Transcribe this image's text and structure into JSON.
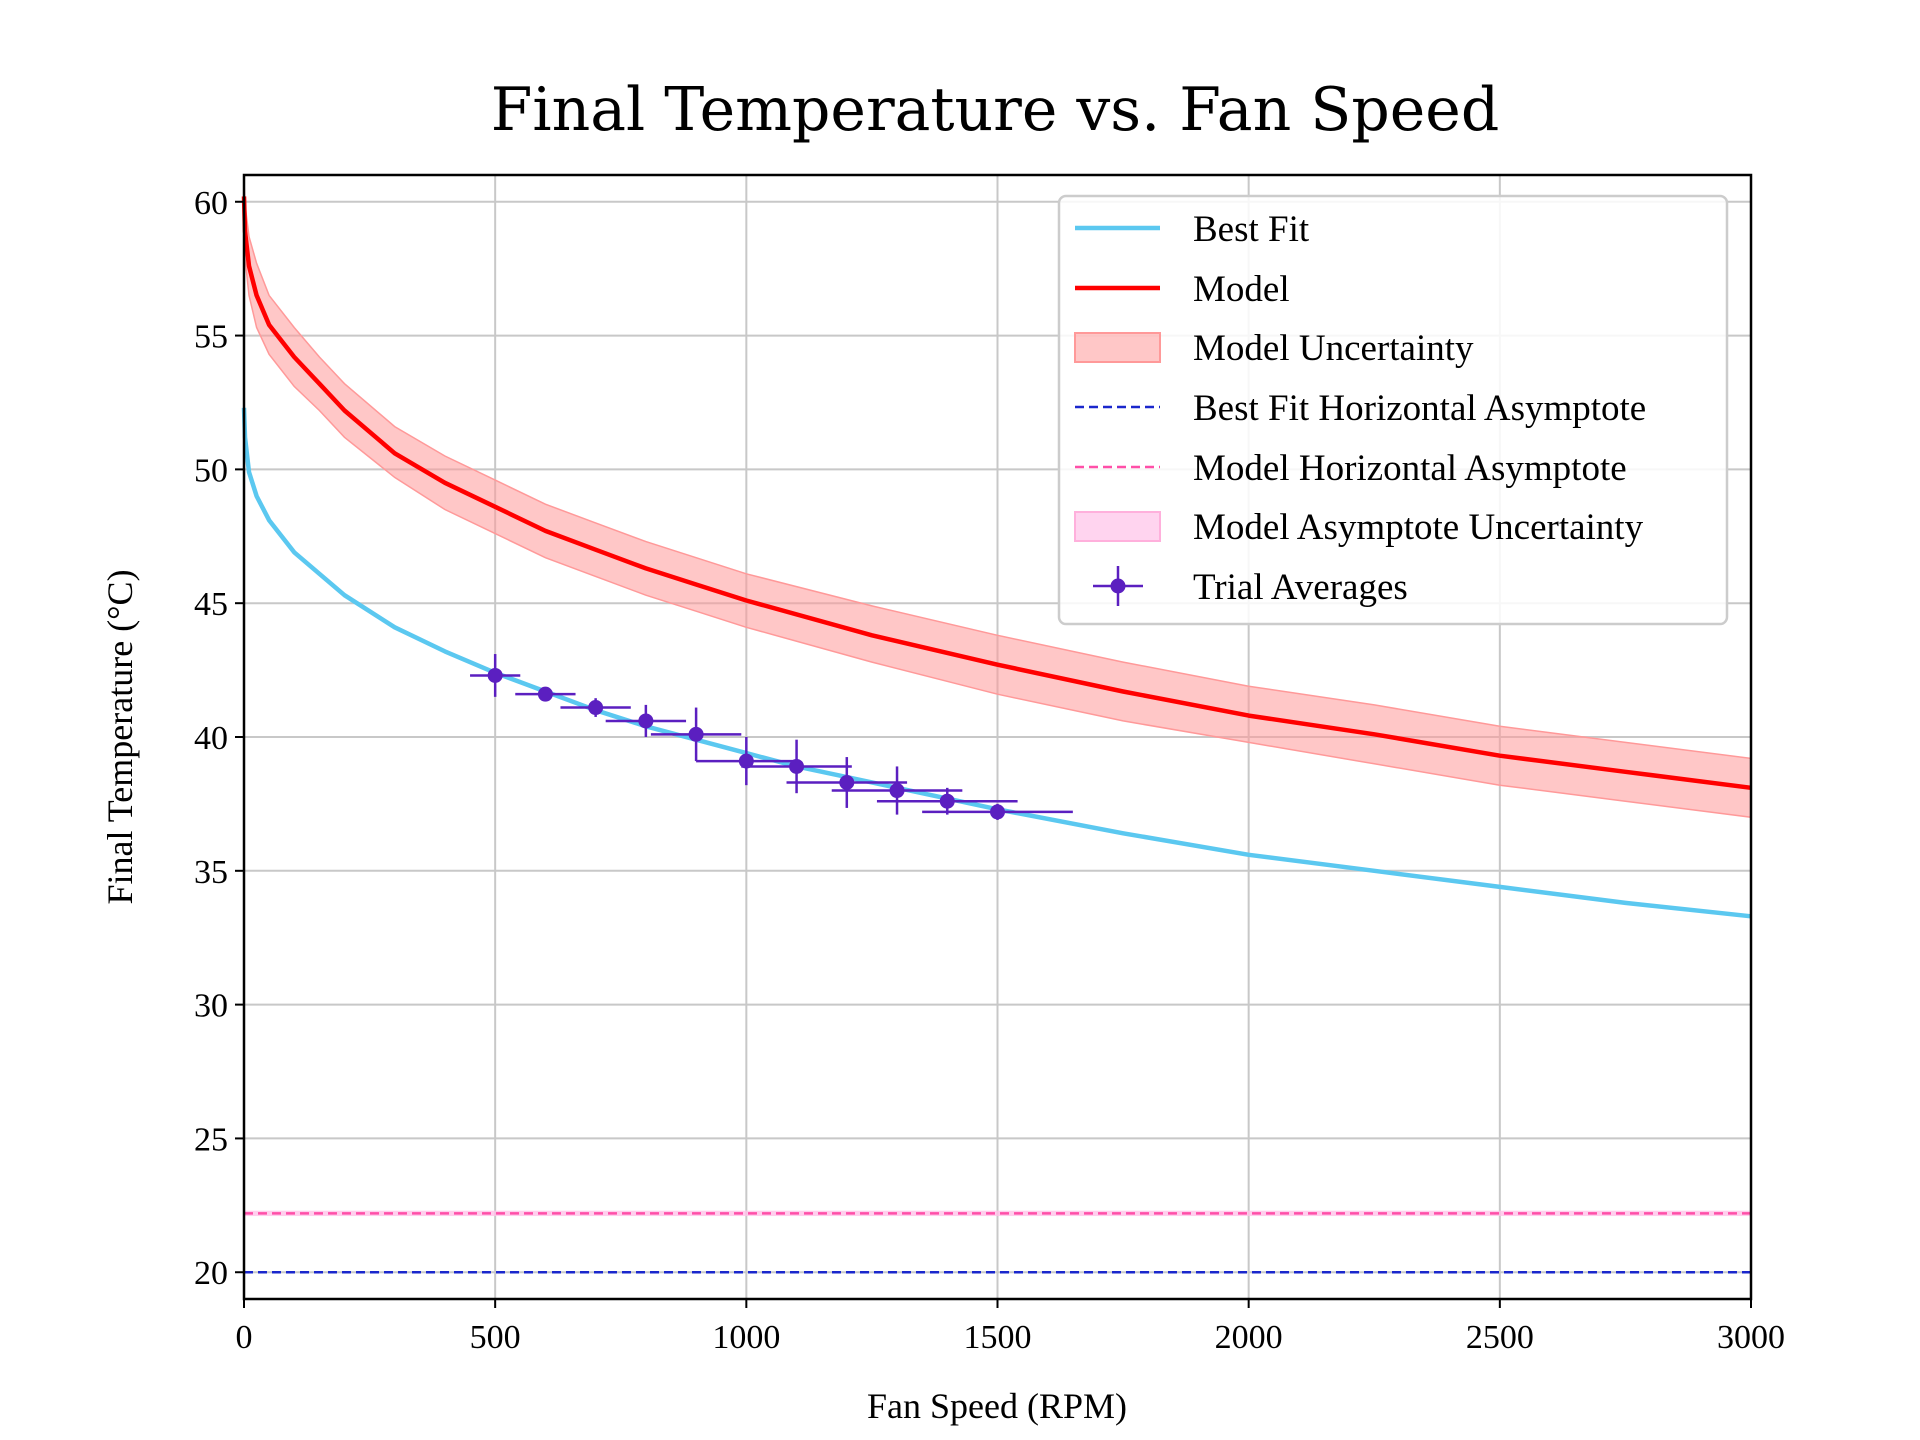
{
  "chart_data": {
    "type": "line",
    "title": "Final Temperature vs. Fan Speed",
    "xlabel": "Fan Speed (RPM)",
    "ylabel": "Final Temperature (°C)",
    "xlim": [
      0,
      3000
    ],
    "ylim": [
      19,
      61
    ],
    "xticks": [
      0,
      500,
      1000,
      1500,
      2000,
      2500,
      3000
    ],
    "yticks": [
      20,
      25,
      30,
      35,
      40,
      45,
      50,
      55,
      60
    ],
    "grid": true,
    "legend_position": "top-right",
    "colors": {
      "best_fit": "#5bc8f0",
      "model": "#ff0000",
      "model_uncertainty": "#ff9999",
      "best_fit_asymptote": "#1a27cc",
      "model_asymptote": "#ff4fa8",
      "model_asymptote_uncertainty": "#ffc2e8",
      "trial_averages": "#5b1fc0"
    },
    "series": [
      {
        "name": "Best Fit",
        "style": "line",
        "x": [
          0,
          2,
          10,
          25,
          50,
          100,
          150,
          200,
          300,
          400,
          500,
          600,
          700,
          800,
          900,
          1000,
          1100,
          1200,
          1300,
          1400,
          1500,
          1750,
          2000,
          2250,
          2500,
          2750,
          3000
        ],
        "y": [
          52.3,
          51.2,
          49.9,
          49.0,
          48.1,
          46.9,
          46.1,
          45.3,
          44.1,
          43.2,
          42.4,
          41.7,
          41.0,
          40.4,
          39.9,
          39.4,
          38.9,
          38.5,
          38.1,
          37.7,
          37.3,
          36.4,
          35.6,
          35.0,
          34.4,
          33.8,
          33.3
        ]
      },
      {
        "name": "Model",
        "style": "line",
        "x": [
          0,
          2,
          10,
          25,
          50,
          100,
          150,
          200,
          300,
          400,
          500,
          600,
          700,
          800,
          900,
          1000,
          1250,
          1500,
          1750,
          2000,
          2250,
          2500,
          2750,
          3000
        ],
        "y": [
          60.2,
          58.9,
          57.6,
          56.5,
          55.4,
          54.2,
          53.2,
          52.2,
          50.6,
          49.5,
          48.6,
          47.7,
          47.0,
          46.3,
          45.7,
          45.1,
          43.8,
          42.7,
          41.7,
          40.8,
          40.1,
          39.3,
          38.7,
          38.1
        ]
      },
      {
        "name": "Model Uncertainty",
        "style": "band",
        "x": [
          0,
          2,
          10,
          25,
          50,
          100,
          150,
          200,
          300,
          400,
          500,
          600,
          700,
          800,
          900,
          1000,
          1250,
          1500,
          1750,
          2000,
          2250,
          2500,
          2750,
          3000
        ],
        "lower": [
          59.6,
          57.9,
          56.5,
          55.3,
          54.3,
          53.1,
          52.2,
          51.2,
          49.7,
          48.5,
          47.6,
          46.7,
          46.0,
          45.3,
          44.7,
          44.1,
          42.8,
          41.6,
          40.6,
          39.8,
          39.0,
          38.2,
          37.6,
          37.0
        ],
        "upper": [
          60.8,
          59.9,
          58.7,
          57.7,
          56.5,
          55.3,
          54.2,
          53.2,
          51.6,
          50.5,
          49.6,
          48.7,
          48.0,
          47.3,
          46.7,
          46.1,
          44.9,
          43.8,
          42.8,
          41.9,
          41.2,
          40.4,
          39.8,
          39.2
        ]
      },
      {
        "name": "Best Fit Horizontal Asymptote",
        "style": "dashed",
        "y": 20.0
      },
      {
        "name": "Model Horizontal Asymptote",
        "style": "dashed",
        "y": 22.2
      },
      {
        "name": "Model Asymptote Uncertainty",
        "style": "band",
        "lower": 22.1,
        "upper": 22.3
      },
      {
        "name": "Trial Averages",
        "style": "errorbar",
        "points": [
          {
            "x": 500,
            "y": 42.3,
            "xerr": 50,
            "yerr": 0.8
          },
          {
            "x": 600,
            "y": 41.6,
            "xerr": 60,
            "yerr": 0.2
          },
          {
            "x": 700,
            "y": 41.1,
            "xerr": 70,
            "yerr": 0.35
          },
          {
            "x": 800,
            "y": 40.6,
            "xerr": 80,
            "yerr": 0.6
          },
          {
            "x": 900,
            "y": 40.1,
            "xerr": 90,
            "yerr": 1.0
          },
          {
            "x": 1000,
            "y": 39.1,
            "xerr": 100,
            "yerr": 0.9
          },
          {
            "x": 1100,
            "y": 38.9,
            "xerr": 110,
            "yerr": 1.0
          },
          {
            "x": 1200,
            "y": 38.3,
            "xerr": 120,
            "yerr": 0.95
          },
          {
            "x": 1300,
            "y": 38.0,
            "xerr": 130,
            "yerr": 0.9
          },
          {
            "x": 1400,
            "y": 37.6,
            "xerr": 140,
            "yerr": 0.5
          },
          {
            "x": 1500,
            "y": 37.2,
            "xerr": 150,
            "yerr": 0.3
          }
        ]
      }
    ]
  }
}
